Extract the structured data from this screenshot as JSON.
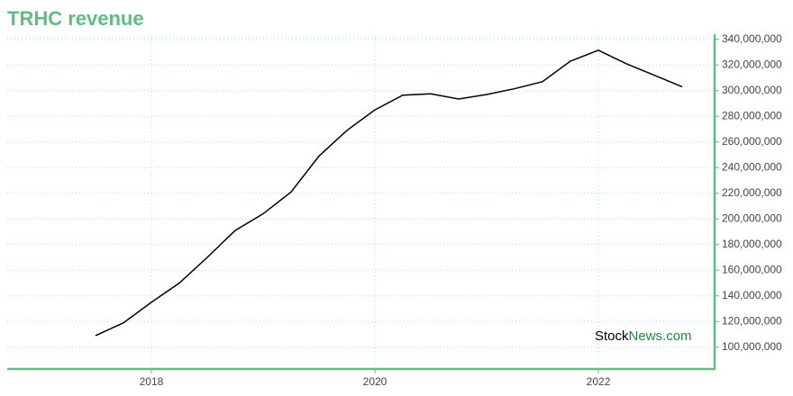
{
  "chart_data": {
    "type": "line",
    "title": "TRHC revenue",
    "watermark": [
      "Stock",
      "News.com"
    ],
    "x": [
      2017.5,
      2017.75,
      2018,
      2018.25,
      2018.5,
      2018.75,
      2019,
      2019.25,
      2019.5,
      2019.75,
      2020,
      2020.25,
      2020.5,
      2020.75,
      2021,
      2021.25,
      2021.5,
      2021.75,
      2022,
      2022.25,
      2022.5,
      2022.75
    ],
    "series": [
      {
        "name": "Revenue",
        "color": "#000000",
        "values": [
          109000000,
          119000000,
          135000000,
          150000000,
          170000000,
          191000000,
          204000000,
          221000000,
          249000000,
          269000000,
          285000000,
          296500000,
          297500000,
          293500000,
          297000000,
          301500000,
          307000000,
          323000000,
          331500000,
          321000000,
          312000000,
          303000000
        ]
      }
    ],
    "xlim": [
      2016.71,
      2023.04
    ],
    "xticks": [
      2018,
      2020,
      2022
    ],
    "ylim": [
      83000000,
      344000000
    ],
    "yticks": [
      {
        "value": 100000000,
        "label": "100,000,000"
      },
      {
        "value": 120000000,
        "label": "120,000,000"
      },
      {
        "value": 140000000,
        "label": "140,000,000"
      },
      {
        "value": 160000000,
        "label": "160,000,000"
      },
      {
        "value": 180000000,
        "label": "180,000,000"
      },
      {
        "value": 200000000,
        "label": "200,000,000"
      },
      {
        "value": 220000000,
        "label": "220,000,000"
      },
      {
        "value": 240000000,
        "label": "240,000,000"
      },
      {
        "value": 260000000,
        "label": "260,000,000"
      },
      {
        "value": 280000000,
        "label": "280,000,000"
      },
      {
        "value": 300000000,
        "label": "300,000,000"
      },
      {
        "value": 320000000,
        "label": "320,000,000"
      },
      {
        "value": 340000000,
        "label": "340,000,000"
      }
    ],
    "grid": true,
    "axis_color": "#5cbf7f"
  }
}
